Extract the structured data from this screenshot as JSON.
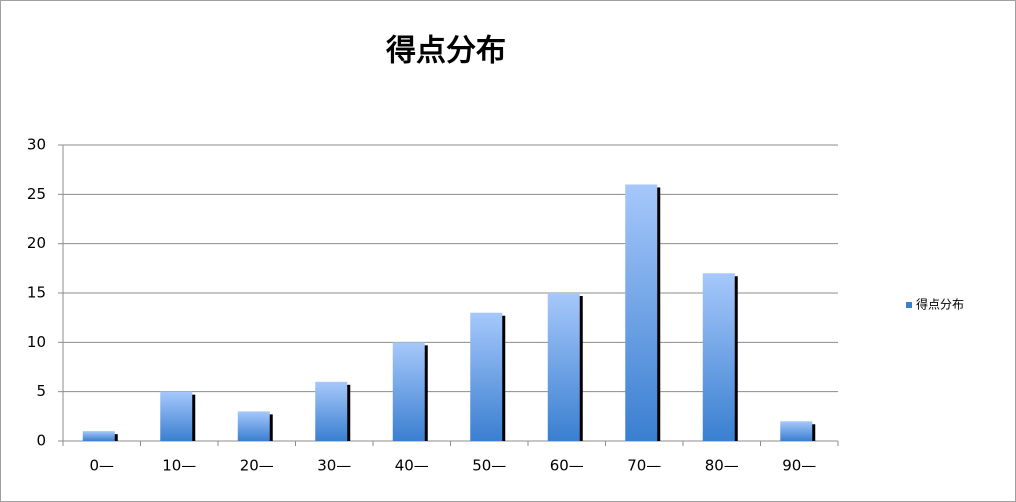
{
  "chart_data": {
    "type": "bar",
    "title": "得点分布",
    "categories": [
      "0—",
      "10—",
      "20—",
      "30—",
      "40—",
      "50—",
      "60—",
      "70—",
      "80—",
      "90—"
    ],
    "series": [
      {
        "name": "得点分布",
        "color": "#3a7fd0",
        "values": [
          1,
          5,
          3,
          6,
          10,
          13,
          15,
          26,
          17,
          2
        ]
      }
    ],
    "ylim": [
      0,
      30
    ],
    "yticks": [
      0,
      5,
      10,
      15,
      20,
      25,
      30
    ],
    "grid": true,
    "legend": "right"
  }
}
